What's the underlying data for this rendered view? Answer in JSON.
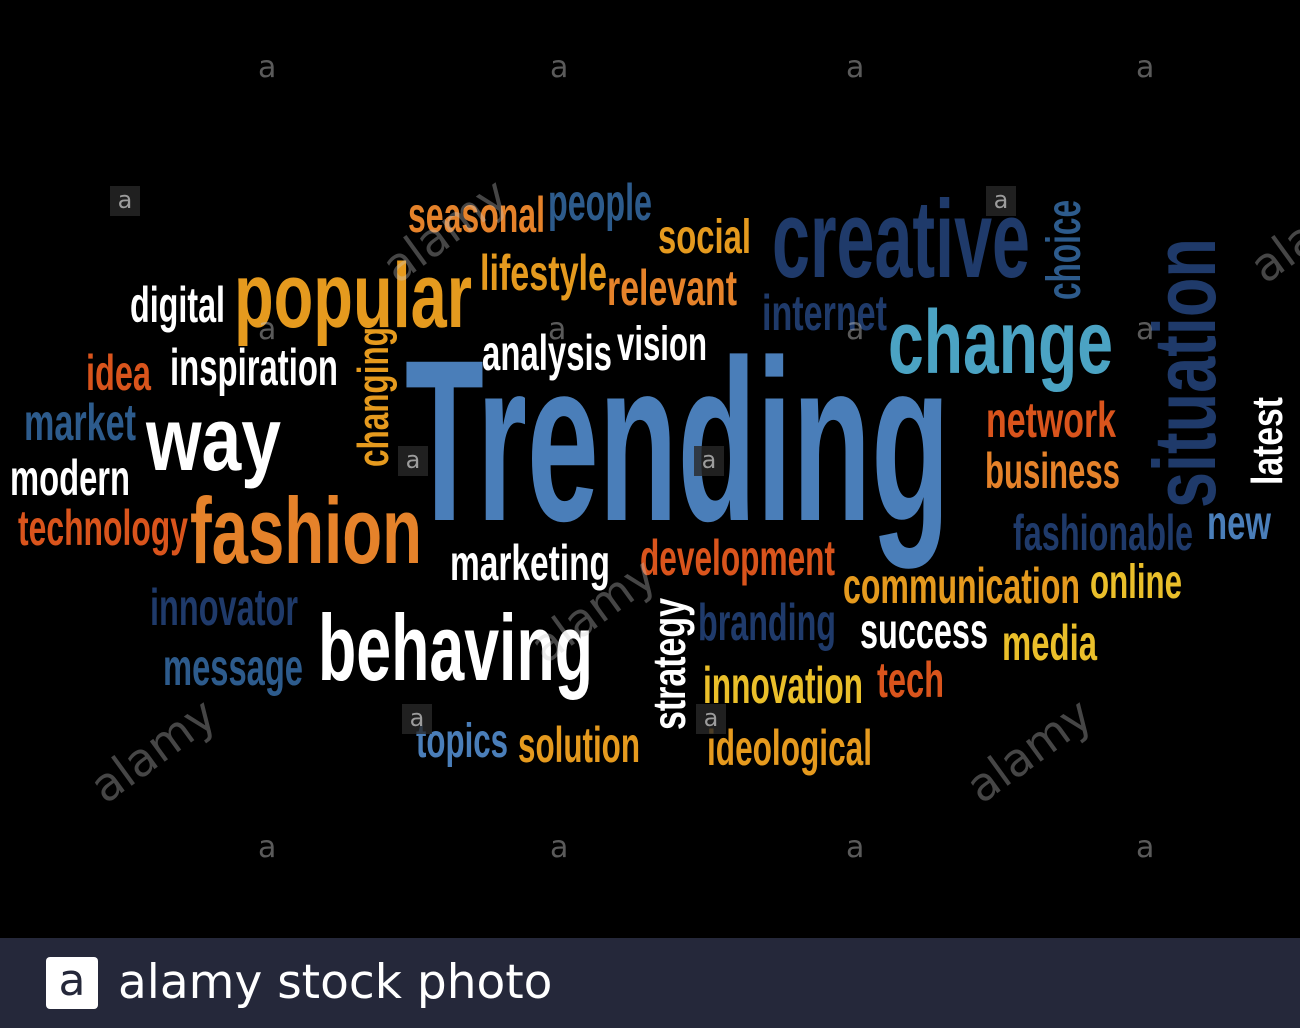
{
  "word_cloud": {
    "words": [
      {
        "text": "Trending",
        "color": "#4a7eb9"
      },
      {
        "text": "creative",
        "color": "#1f3a6a"
      },
      {
        "text": "change",
        "color": "#4ba3c3"
      },
      {
        "text": "situation",
        "color": "#1f3a6a"
      },
      {
        "text": "popular",
        "color": "#e59a1e"
      },
      {
        "text": "fashion",
        "color": "#e5822a"
      },
      {
        "text": "behaving",
        "color": "#ffffff"
      },
      {
        "text": "way",
        "color": "#ffffff"
      },
      {
        "text": "seasonal",
        "color": "#e5822a"
      },
      {
        "text": "people",
        "color": "#2d5b8c"
      },
      {
        "text": "social",
        "color": "#e59a1e"
      },
      {
        "text": "choice",
        "color": "#2d5b8c"
      },
      {
        "text": "lifestyle",
        "color": "#e59a1e"
      },
      {
        "text": "relevant",
        "color": "#e5822a"
      },
      {
        "text": "digital",
        "color": "#ffffff"
      },
      {
        "text": "internet",
        "color": "#1f3a6a"
      },
      {
        "text": "analysis",
        "color": "#ffffff"
      },
      {
        "text": "vision",
        "color": "#ffffff"
      },
      {
        "text": "idea",
        "color": "#d9541c"
      },
      {
        "text": "inspiration",
        "color": "#ffffff"
      },
      {
        "text": "changing",
        "color": "#e59a1e"
      },
      {
        "text": "market",
        "color": "#2d5b8c"
      },
      {
        "text": "modern",
        "color": "#ffffff"
      },
      {
        "text": "technology",
        "color": "#d9541c"
      },
      {
        "text": "network",
        "color": "#d9541c"
      },
      {
        "text": "business",
        "color": "#e5822a"
      },
      {
        "text": "latest",
        "color": "#ffffff"
      },
      {
        "text": "fashionable",
        "color": "#1f3a6a"
      },
      {
        "text": "new",
        "color": "#4a7eb9"
      },
      {
        "text": "marketing",
        "color": "#ffffff"
      },
      {
        "text": "development",
        "color": "#d9541c"
      },
      {
        "text": "communication",
        "color": "#e59a1e"
      },
      {
        "text": "online",
        "color": "#eabf2a"
      },
      {
        "text": "innovator",
        "color": "#1f3a6a"
      },
      {
        "text": "branding",
        "color": "#1f3a6a"
      },
      {
        "text": "success",
        "color": "#ffffff"
      },
      {
        "text": "media",
        "color": "#eabf2a"
      },
      {
        "text": "message",
        "color": "#2d5b8c"
      },
      {
        "text": "strategy",
        "color": "#ffffff"
      },
      {
        "text": "innovation",
        "color": "#eabf2a"
      },
      {
        "text": "tech",
        "color": "#d9541c"
      },
      {
        "text": "topics",
        "color": "#4a7eb9"
      },
      {
        "text": "solution",
        "color": "#e59a1e"
      },
      {
        "text": "ideological",
        "color": "#e59a1e"
      }
    ]
  },
  "watermark": {
    "letter": "a",
    "brand": "alamy"
  },
  "footer": {
    "logo_letter": "a",
    "text": "alamy stock photo"
  }
}
